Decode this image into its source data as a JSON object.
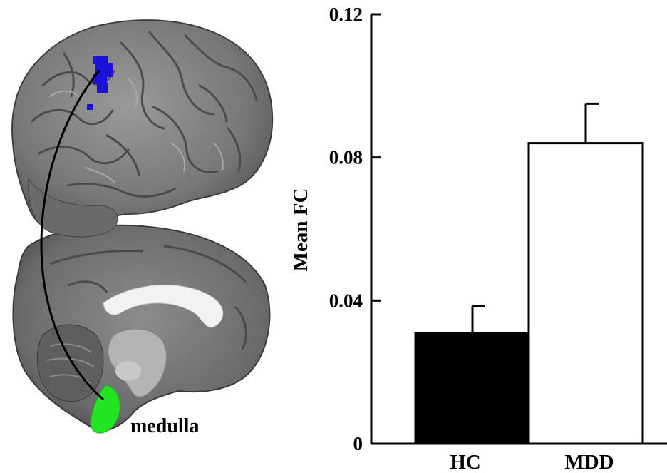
{
  "figure": {
    "region_label": "medulla",
    "colors": {
      "cortical_cluster": "#1a12d8",
      "medulla_roi": "#22e622",
      "brain_gray": "#7a7a7a"
    }
  },
  "chart_data": {
    "type": "bar",
    "categories": [
      "HC",
      "MDD"
    ],
    "values": [
      0.031,
      0.084
    ],
    "errors": [
      0.0075,
      0.011
    ],
    "bar_colors": [
      "#000000",
      "#ffffff"
    ],
    "ylabel": "Mean FC",
    "xlabel": "",
    "ylim": [
      0,
      0.12
    ],
    "yticks": [
      0,
      0.04,
      0.08,
      0.12
    ],
    "ytick_labels": [
      "0",
      "0.04",
      "0.08",
      "0.12"
    ],
    "grid": false
  }
}
